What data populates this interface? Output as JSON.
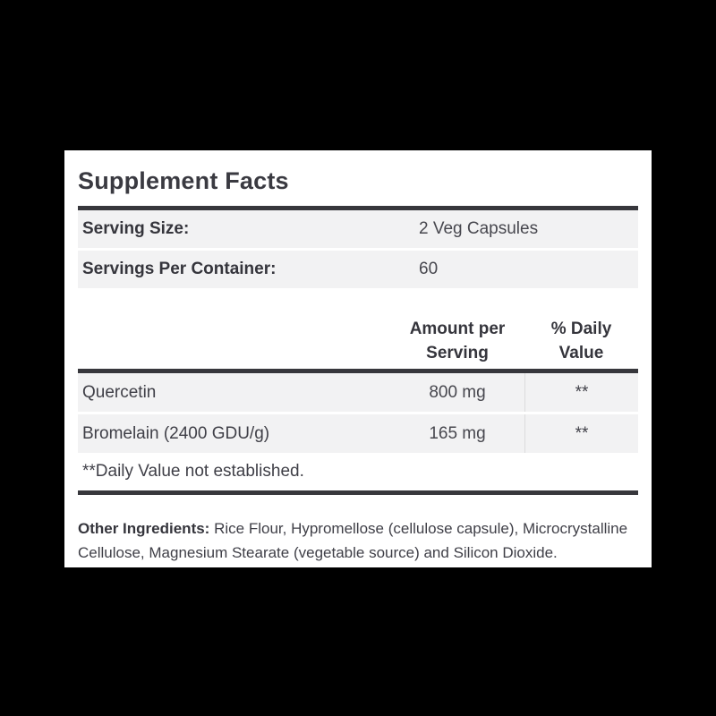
{
  "panel": {
    "title": "Supplement Facts",
    "serving_rows": [
      {
        "label": "Serving Size:",
        "value": "2 Veg Capsules"
      },
      {
        "label": "Servings Per Container:",
        "value": "60"
      }
    ],
    "column_headers": {
      "amount": "Amount per Serving",
      "daily_value": "% Daily Value"
    },
    "ingredients": [
      {
        "name": "Quercetin",
        "amount": "800 mg",
        "daily_value": "**"
      },
      {
        "name": "Bromelain (2400 GDU/g)",
        "amount": "165 mg",
        "daily_value": "**"
      }
    ],
    "footnote": "**Daily Value not established.",
    "other_ingredients": {
      "label": "Other Ingredients:",
      "text": "Rice Flour, Hypromellose (cellulose capsule), Microcrystalline Cellulose, Magnesium Stearate (vegetable source) and Silicon Dioxide."
    },
    "colors": {
      "background": "#000000",
      "panel": "#ffffff",
      "row_background": "#f2f2f3",
      "bar": "#37373c",
      "divider": "#dcdcdc",
      "title_text": "#3a3a41",
      "label_text": "#35353c",
      "value_text": "#47474e"
    }
  }
}
